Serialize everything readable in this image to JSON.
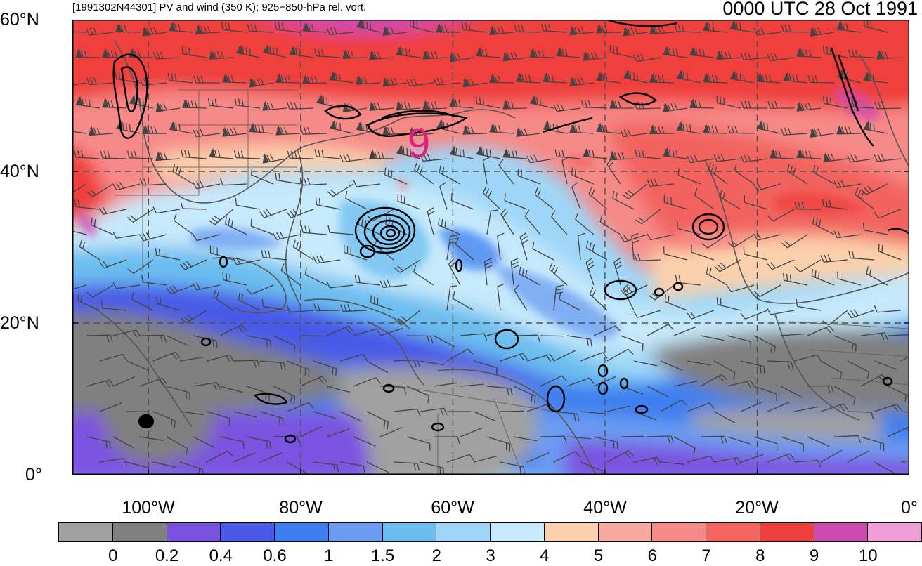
{
  "header": {
    "title_left": "[1991302N44301] PV and wind (350 K); 925−850-hPa rel. vort.",
    "title_right": "0000 UTC 28 Oct 1991"
  },
  "map": {
    "lat_labels": [
      "60°N",
      "40°N",
      "20°N",
      "0°"
    ],
    "lon_labels": [
      "100°W",
      "80°W",
      "60°W",
      "40°W",
      "20°W",
      "0°"
    ],
    "storm_marker": "9",
    "storm_color": "#e0207a"
  },
  "colorbar": {
    "colors": [
      "#a0a0a0",
      "#808080",
      "#7b52e0",
      "#4a5ae6",
      "#3d7ff0",
      "#6a9cf2",
      "#6cbdef",
      "#9fd6f7",
      "#c6e9fb",
      "#fbd0ac",
      "#f9aaa0",
      "#f68a88",
      "#f2645f",
      "#ef3f3c",
      "#cf4ab0",
      "#f09ed8"
    ],
    "labels": [
      "0",
      "0.2",
      "0.4",
      "0.6",
      "1",
      "1.5",
      "2",
      "3",
      "4",
      "5",
      "6",
      "7",
      "8",
      "9",
      "10"
    ]
  }
}
